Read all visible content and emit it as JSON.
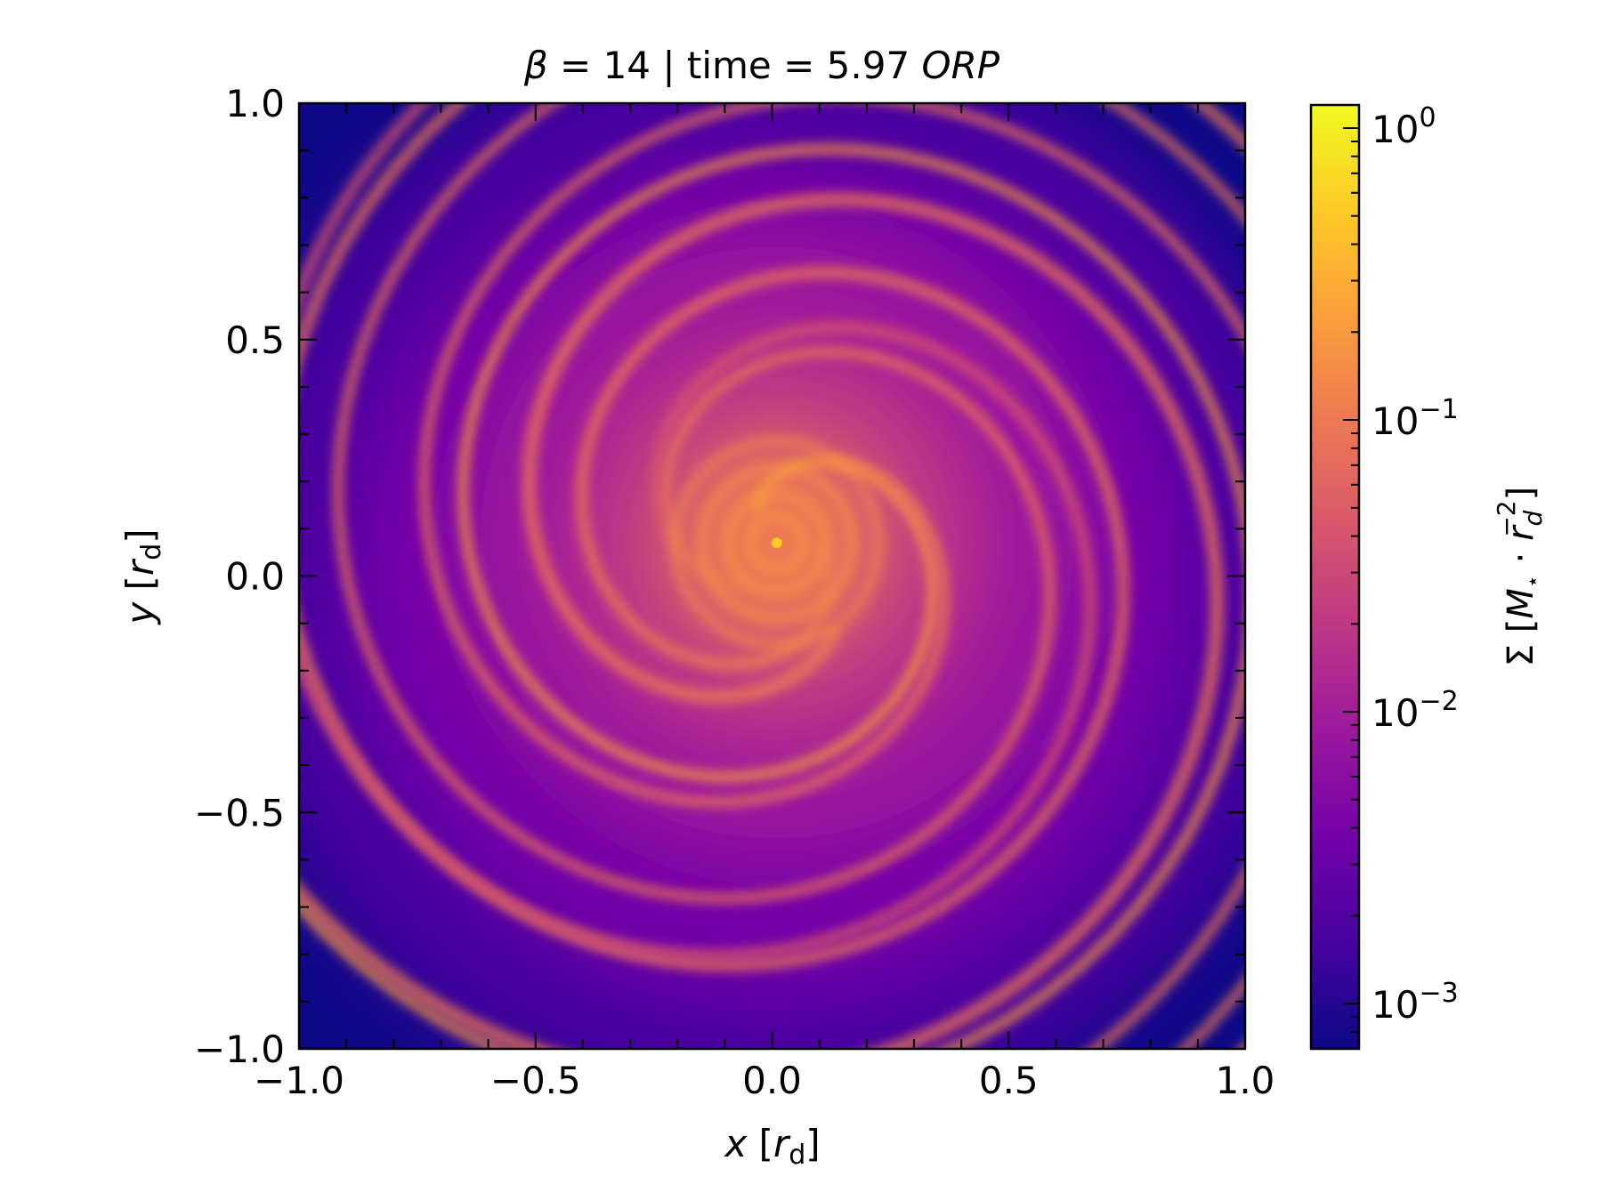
{
  "chart_data": {
    "type": "heatmap",
    "title": {
      "beta_symbol": "β",
      "middle": " = 14 | time = 5.97 ",
      "unit_italic": "ORP"
    },
    "xlabel": {
      "var": "x",
      "open": " [",
      "sym": "r",
      "sub": "d",
      "close": "]"
    },
    "ylabel": {
      "var": "y",
      "open": " [",
      "sym": "r",
      "sub": "d",
      "close": "]"
    },
    "xlim": [
      -1.0,
      1.0
    ],
    "ylim": [
      -1.0,
      1.0
    ],
    "xticks": [
      -1.0,
      -0.5,
      0.0,
      0.5,
      1.0
    ],
    "yticks": [
      -1.0,
      -0.5,
      0.0,
      0.5,
      1.0
    ],
    "xtick_labels": [
      "−1.0",
      "−0.5",
      "0.0",
      "0.5",
      "1.0"
    ],
    "ytick_labels": [
      "−1.0",
      "−0.5",
      "0.0",
      "0.5",
      "1.0"
    ],
    "colormap": "plasma",
    "colorbar": {
      "scale": "log",
      "range": [
        0.0007,
        1.2
      ],
      "ticks": [
        {
          "value": 0.001,
          "base": "10",
          "exp": "−3"
        },
        {
          "value": 0.01,
          "base": "10",
          "exp": "−2"
        },
        {
          "value": 0.1,
          "base": "10",
          "exp": "−1"
        },
        {
          "value": 1,
          "base": "10",
          "exp": "0"
        }
      ],
      "label": {
        "sigma": "Σ",
        "open": " [",
        "M": "M",
        "star": "⋆",
        "dot": " · ",
        "r": "r",
        "r_sub": "d",
        "r_sup": "−2",
        "close": "]"
      }
    },
    "field_description": {
      "center": [
        0.01,
        0.07
      ],
      "peak_value": 0.35,
      "background_min": 0.0008
    }
  },
  "colors": {
    "plasma_stops": [
      "#0d0887",
      "#46039f",
      "#7201a8",
      "#9c179e",
      "#bd3786",
      "#d8576b",
      "#ed7953",
      "#fb9f3a",
      "#fdca26",
      "#f0f921"
    ]
  }
}
